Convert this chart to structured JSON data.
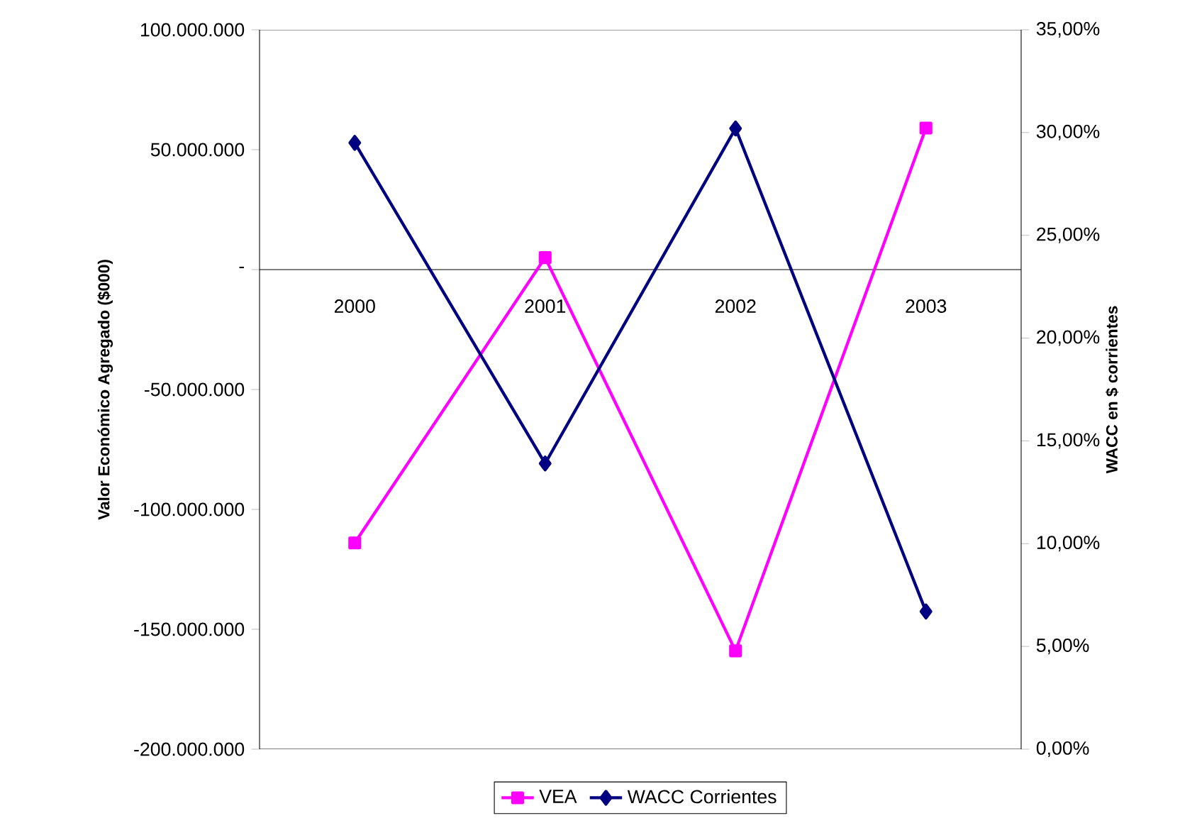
{
  "chart_data": {
    "type": "line",
    "categories": [
      "2000",
      "2001",
      "2002",
      "2003"
    ],
    "series": [
      {
        "name": "VEA",
        "color": "#ff00ff",
        "marker": "square",
        "axis": "y",
        "values": [
          -114000000,
          5000000,
          -159000000,
          59000000
        ]
      },
      {
        "name": "WACC Corrientes",
        "color": "#000080",
        "marker": "diamond",
        "axis": "y2",
        "values": [
          29.5,
          13.9,
          30.2,
          6.7
        ]
      }
    ],
    "ylabel": "Valor Económico Agregado ($000)",
    "y2label": "WACC en $ corrientes",
    "ylim": [
      -200000000,
      100000000
    ],
    "yticks": [
      {
        "value": -200000000,
        "label": "-200.000.000"
      },
      {
        "value": -150000000,
        "label": "-150.000.000"
      },
      {
        "value": -100000000,
        "label": "-100.000.000"
      },
      {
        "value": -50000000,
        "label": "-50.000.000"
      },
      {
        "value": 0,
        "label": "-"
      },
      {
        "value": 50000000,
        "label": "50.000.000"
      },
      {
        "value": 100000000,
        "label": "100.000.000"
      }
    ],
    "y2lim": [
      0,
      35
    ],
    "y2ticks": [
      {
        "value": 0,
        "label": "0,00%"
      },
      {
        "value": 5,
        "label": "5,00%"
      },
      {
        "value": 10,
        "label": "10,00%"
      },
      {
        "value": 15,
        "label": "15,00%"
      },
      {
        "value": 20,
        "label": "20,00%"
      },
      {
        "value": 25,
        "label": "25,00%"
      },
      {
        "value": 30,
        "label": "30,00%"
      },
      {
        "value": 35,
        "label": "35,00%"
      }
    ],
    "legend": "bottom"
  }
}
